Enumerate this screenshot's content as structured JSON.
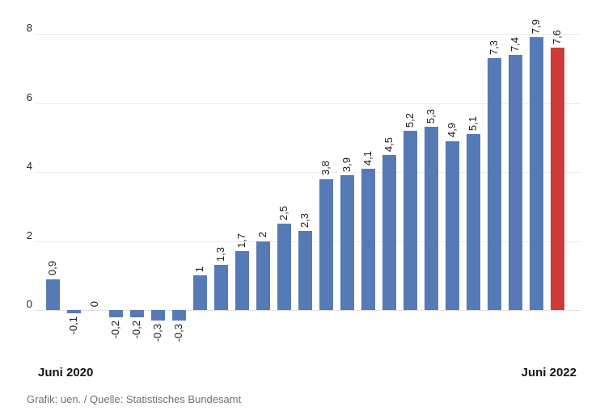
{
  "chart_data": {
    "type": "bar",
    "title": "",
    "values": [
      0.9,
      -0.1,
      0,
      -0.2,
      -0.2,
      -0.3,
      -0.3,
      1,
      1.3,
      1.7,
      2,
      2.5,
      2.3,
      3.8,
      3.9,
      4.1,
      4.5,
      5.2,
      5.3,
      4.9,
      5.1,
      7.3,
      7.4,
      7.9,
      7.6
    ],
    "bar_labels": [
      "0,9",
      "-0,1",
      "0",
      "-0,2",
      "-0,2",
      "-0,3",
      "-0,3",
      "1",
      "1,3",
      "1,7",
      "2",
      "2,5",
      "2,3",
      "3,8",
      "3,9",
      "4,1",
      "4,5",
      "5,2",
      "5,3",
      "4,9",
      "5,1",
      "7,3",
      "7,4",
      "7,9",
      "7,6"
    ],
    "y_ticks": [
      8,
      6,
      4,
      2,
      0
    ],
    "ylim": [
      -0.5,
      8.4
    ],
    "grid": true,
    "legend": false,
    "x_axis_labels": [
      "Juni 2020",
      "Juni 2022"
    ],
    "highlight_index": 24,
    "colors": {
      "bar": "#567ab6",
      "highlight": "#cc3a3a",
      "grid": "#ececec",
      "zero_line": "#e2e2e2"
    },
    "credit": "Grafik: uen. / Quelle: Statistisches Bundesamt"
  }
}
